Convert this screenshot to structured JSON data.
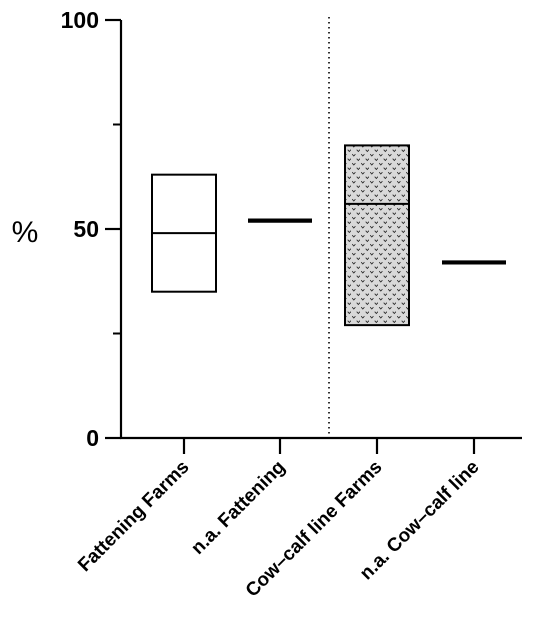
{
  "chart_data": {
    "type": "floating-bar",
    "ylabel": "%",
    "ylim": [
      0,
      100
    ],
    "yticks": [
      0,
      50,
      100
    ],
    "yminor_ticks": [
      25,
      75
    ],
    "categories": [
      "Fattening Farms",
      "n.a. Fattening",
      "Cow–calf line Farms",
      "n.a. Cow–calf line"
    ],
    "series": [
      {
        "category": "Fattening Farms",
        "kind": "range",
        "min": 35,
        "max": 63,
        "mean": 49,
        "fill": "none"
      },
      {
        "category": "n.a. Fattening",
        "kind": "line",
        "value": 52
      },
      {
        "category": "Cow–calf line Farms",
        "kind": "range",
        "min": 27,
        "max": 70,
        "mean": 56,
        "fill": "dotted-pattern"
      },
      {
        "category": "n.a. Cow–calf line",
        "kind": "line",
        "value": 42
      }
    ],
    "separator_after_category": 1,
    "separator_style": "dotted",
    "grid": false,
    "legend": "none"
  }
}
